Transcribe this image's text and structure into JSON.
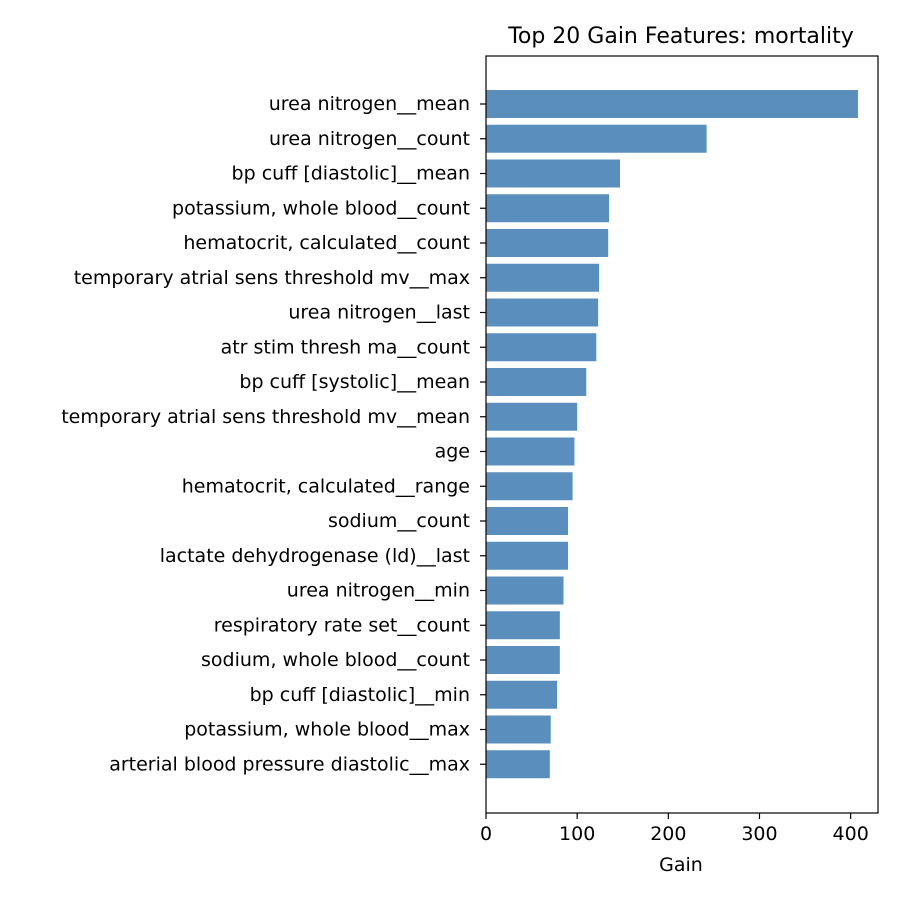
{
  "chart_data": {
    "type": "bar",
    "orientation": "horizontal",
    "title": "Top 20 Gain Features: mortality",
    "xlabel": "Gain",
    "ylabel": "",
    "xlim": [
      0,
      430
    ],
    "xticks": [
      0,
      100,
      200,
      300,
      400
    ],
    "grid": false,
    "bar_color": "#5a8fbd",
    "categories": [
      "urea nitrogen__mean",
      "urea nitrogen__count",
      "bp cuff [diastolic]__mean",
      "potassium, whole blood__count",
      "hematocrit, calculated__count",
      "temporary atrial sens threshold mv__max",
      "urea nitrogen__last",
      "atr stim thresh ma__count",
      "bp cuff [systolic]__mean",
      "temporary atrial sens threshold mv__mean",
      "age",
      "hematocrit, calculated__range",
      "sodium__count",
      "lactate dehydrogenase (ld)__last",
      "urea nitrogen__min",
      "respiratory rate set__count",
      "sodium, whole blood__count",
      "bp cuff [diastolic]__min",
      "potassium, whole blood__max",
      "arterial blood pressure diastolic__max"
    ],
    "values": [
      408,
      242,
      147,
      135,
      134,
      124,
      123,
      121,
      110,
      100,
      97,
      95,
      90,
      90,
      85,
      81,
      81,
      78,
      71,
      70
    ]
  }
}
